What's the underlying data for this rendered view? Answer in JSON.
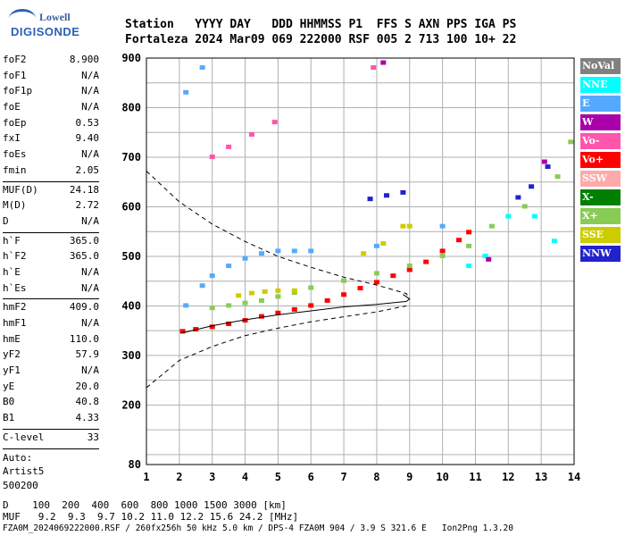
{
  "logo": {
    "line1": "Lowell",
    "line2": "DIGISONDE"
  },
  "header": {
    "labels": "Station   YYYY DAY   DDD HHMMSS P1  FFS S AXN PPS IGA PS",
    "values": "Fortaleza 2024 Mar09 069 222000 RSF 005 2 713 100 10+ 22"
  },
  "params_group1": [
    {
      "k": "foF2",
      "v": "8.900"
    },
    {
      "k": "foF1",
      "v": "N/A"
    },
    {
      "k": "foF1p",
      "v": "N/A"
    },
    {
      "k": "foE",
      "v": "N/A"
    },
    {
      "k": "foEp",
      "v": "0.53"
    },
    {
      "k": "fxI",
      "v": "9.40"
    },
    {
      "k": "foEs",
      "v": "N/A"
    },
    {
      "k": "fmin",
      "v": "2.05"
    }
  ],
  "params_group2": [
    {
      "k": "MUF(D)",
      "v": "24.18"
    },
    {
      "k": "M(D)",
      "v": "2.72"
    },
    {
      "k": "D",
      "v": "N/A"
    }
  ],
  "params_group3": [
    {
      "k": "h`F",
      "v": "365.0"
    },
    {
      "k": "h`F2",
      "v": "365.0"
    },
    {
      "k": "h`E",
      "v": "N/A"
    },
    {
      "k": "h`Es",
      "v": "N/A"
    }
  ],
  "params_group4": [
    {
      "k": "hmF2",
      "v": "409.0"
    },
    {
      "k": "hmF1",
      "v": "N/A"
    },
    {
      "k": "hmE",
      "v": "110.0"
    },
    {
      "k": "yF2",
      "v": "57.9"
    },
    {
      "k": "yF1",
      "v": "N/A"
    },
    {
      "k": "yE",
      "v": "20.0"
    },
    {
      "k": "B0",
      "v": "40.8"
    },
    {
      "k": "B1",
      "v": "4.33"
    }
  ],
  "clevel": {
    "k": "C-level",
    "v": "33"
  },
  "auto": [
    "Auto:",
    "Artist5",
    "500200"
  ],
  "legend": [
    {
      "label": "NoVal",
      "color": "#808080"
    },
    {
      "label": "NNE",
      "color": "#00ffff"
    },
    {
      "label": "E",
      "color": "#55aaff"
    },
    {
      "label": "W",
      "color": "#aa00aa"
    },
    {
      "label": "Vo-",
      "color": "#ff55aa"
    },
    {
      "label": "Vo+",
      "color": "#ff0000"
    },
    {
      "label": "SSW",
      "color": "#ffaaaa"
    },
    {
      "label": "X-",
      "color": "#008000"
    },
    {
      "label": "X+",
      "color": "#88cc55"
    },
    {
      "label": "SSE",
      "color": "#cccc00"
    },
    {
      "label": "NNW",
      "color": "#2222cc"
    }
  ],
  "footer": {
    "d_row": "D    100  200  400  600  800 1000 1500 3000 [km]",
    "muf_row": "MUF   9.2  9.3  9.7 10.2 11.0 12.2 15.6 24.2 [MHz]",
    "file_row": "FZA0M_2024069222000.RSF / 260fx256h 50 kHz 5.0 km / DPS-4 FZA0M 904 / 3.9 S 321.6 E   Ion2Png 1.3.20"
  },
  "chart_data": {
    "type": "scatter",
    "xlim": [
      1,
      14
    ],
    "ylim": [
      80,
      900
    ],
    "x_ticks": [
      1,
      2,
      3,
      4,
      5,
      6,
      7,
      8,
      9,
      10,
      11,
      12,
      13,
      14
    ],
    "y_ticks": [
      80,
      200,
      300,
      400,
      500,
      600,
      700,
      800,
      900
    ],
    "grid": true,
    "profile_solid": [
      [
        2.05,
        345
      ],
      [
        2.5,
        352
      ],
      [
        3,
        360
      ],
      [
        4,
        372
      ],
      [
        5,
        382
      ],
      [
        6,
        390
      ],
      [
        7,
        398
      ],
      [
        8,
        403
      ],
      [
        8.9,
        409
      ],
      [
        9.0,
        414
      ],
      [
        8.8,
        423
      ]
    ],
    "profile_dashed_upper": [
      [
        1,
        672
      ],
      [
        2,
        610
      ],
      [
        3,
        565
      ],
      [
        4,
        530
      ],
      [
        5,
        500
      ],
      [
        6,
        478
      ],
      [
        7,
        458
      ],
      [
        8,
        442
      ],
      [
        8.9,
        425
      ],
      [
        9.0,
        414
      ]
    ],
    "profile_dashed_lower": [
      [
        1,
        235
      ],
      [
        2,
        290
      ],
      [
        3,
        318
      ],
      [
        4,
        340
      ],
      [
        5,
        355
      ],
      [
        6,
        368
      ],
      [
        7,
        378
      ],
      [
        8,
        388
      ],
      [
        8.9,
        400
      ]
    ],
    "traces": [
      {
        "name": "Vo+",
        "points": [
          [
            2.1,
            348
          ],
          [
            2.5,
            352
          ],
          [
            3,
            357
          ],
          [
            3.5,
            363
          ],
          [
            4,
            370
          ],
          [
            4.5,
            378
          ],
          [
            5,
            385
          ],
          [
            5.5,
            392
          ],
          [
            6,
            400
          ],
          [
            6.5,
            410
          ],
          [
            7,
            422
          ],
          [
            7.5,
            435
          ],
          [
            8,
            447
          ],
          [
            8.5,
            460
          ],
          [
            9,
            472
          ],
          [
            9.5,
            488
          ],
          [
            10,
            510
          ],
          [
            10.5,
            532
          ],
          [
            10.8,
            548
          ]
        ]
      },
      {
        "name": "X+",
        "points": [
          [
            3,
            395
          ],
          [
            3.5,
            400
          ],
          [
            4,
            405
          ],
          [
            4.5,
            410
          ],
          [
            5,
            418
          ],
          [
            5.5,
            426
          ],
          [
            6,
            436
          ],
          [
            7,
            450
          ],
          [
            8,
            465
          ],
          [
            9,
            480
          ],
          [
            10,
            500
          ],
          [
            10.8,
            520
          ],
          [
            11.5,
            560
          ],
          [
            12.5,
            600
          ],
          [
            13.5,
            660
          ],
          [
            13.9,
            730
          ]
        ]
      },
      {
        "name": "SSE",
        "points": [
          [
            3.8,
            420
          ],
          [
            4.2,
            425
          ],
          [
            4.6,
            428
          ],
          [
            5,
            430
          ],
          [
            5.5,
            430
          ],
          [
            7.6,
            505
          ],
          [
            8.2,
            525
          ],
          [
            8.8,
            560
          ],
          [
            9,
            560
          ]
        ]
      },
      {
        "name": "E",
        "points": [
          [
            2.2,
            400
          ],
          [
            2.7,
            440
          ],
          [
            3,
            460
          ],
          [
            3.5,
            480
          ],
          [
            4,
            495
          ],
          [
            4.5,
            505
          ],
          [
            5,
            510
          ],
          [
            5.5,
            510
          ],
          [
            6,
            510
          ],
          [
            2.2,
            830
          ],
          [
            2.7,
            880
          ],
          [
            8,
            520
          ],
          [
            10,
            560
          ]
        ]
      },
      {
        "name": "NNE",
        "points": [
          [
            10.8,
            480
          ],
          [
            11.3,
            500
          ],
          [
            12,
            580
          ],
          [
            12.8,
            580
          ],
          [
            13.4,
            530
          ]
        ]
      },
      {
        "name": "NNW",
        "points": [
          [
            7.8,
            615
          ],
          [
            8.3,
            622
          ],
          [
            8.8,
            628
          ],
          [
            12.3,
            618
          ],
          [
            12.7,
            640
          ],
          [
            13.2,
            680
          ]
        ]
      },
      {
        "name": "W",
        "points": [
          [
            8.2,
            890
          ],
          [
            11.4,
            493
          ],
          [
            13.1,
            690
          ]
        ]
      },
      {
        "name": "Vo-",
        "points": [
          [
            3,
            700
          ],
          [
            3.5,
            720
          ],
          [
            4.2,
            745
          ],
          [
            4.9,
            770
          ],
          [
            7.9,
            880
          ]
        ]
      }
    ]
  }
}
